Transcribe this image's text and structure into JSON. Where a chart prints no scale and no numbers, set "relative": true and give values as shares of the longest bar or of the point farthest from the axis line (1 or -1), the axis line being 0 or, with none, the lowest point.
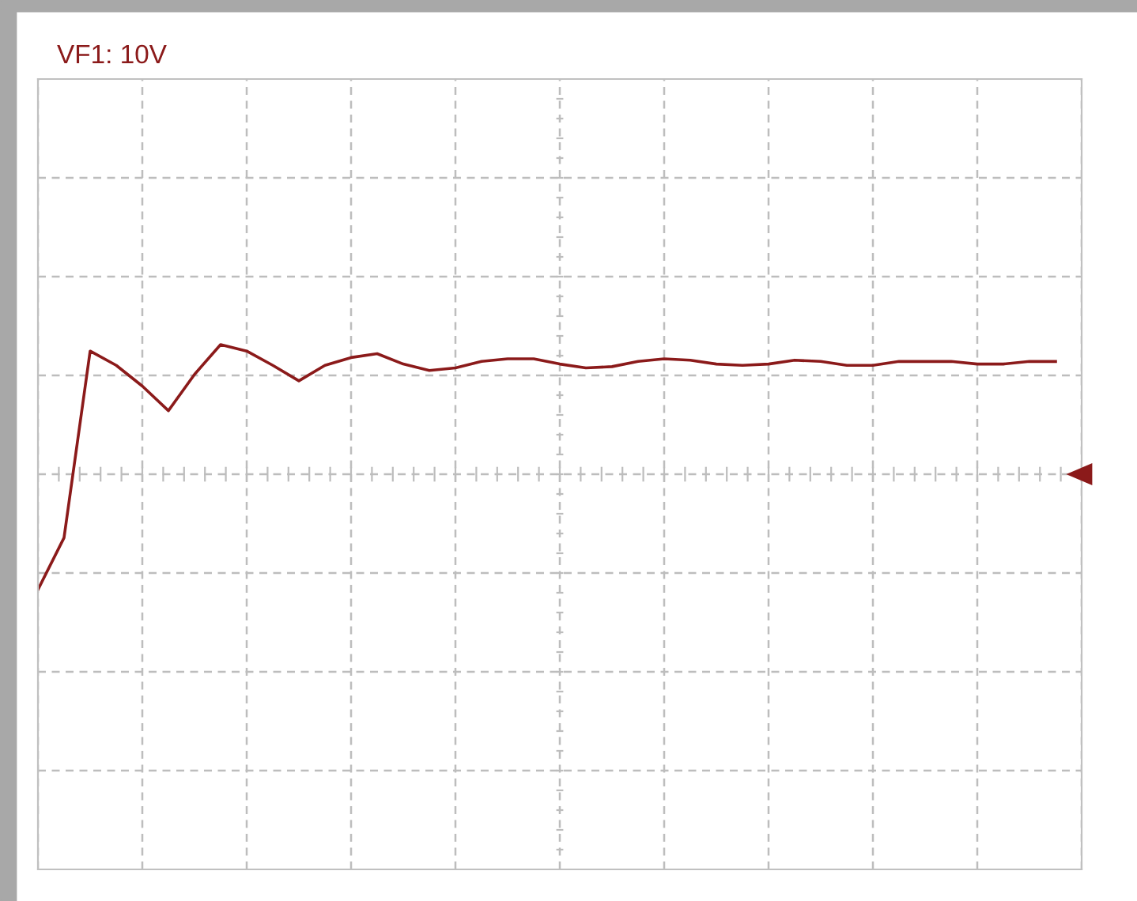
{
  "chart_data": {
    "type": "line",
    "title": "VF1: 10V",
    "relative": true,
    "grid": true,
    "tick_labels": false,
    "marker": "none",
    "line_style": "solid",
    "categories": [
      null,
      null,
      null,
      null,
      null,
      null,
      null,
      null,
      null,
      null,
      null,
      null,
      null,
      null,
      null,
      null,
      null,
      null,
      null,
      null,
      null,
      null,
      null,
      null,
      null,
      null,
      null,
      null,
      null,
      null,
      null,
      null,
      null,
      null,
      null,
      null,
      null,
      null,
      null,
      null,
      null
    ],
    "series": [
      {
        "color": "#8b1a1a",
        "values": [
          -0.89,
          -0.49,
          0.95,
          0.84,
          0.68,
          0.49,
          0.77,
          1.0,
          0.95,
          0.84,
          0.72,
          0.84,
          0.9,
          0.93,
          0.85,
          0.8,
          0.82,
          0.87,
          0.89,
          0.89,
          0.85,
          0.82,
          0.83,
          0.87,
          0.89,
          0.88,
          0.85,
          0.84,
          0.85,
          0.88,
          0.87,
          0.84,
          0.84,
          0.87,
          0.87,
          0.87,
          0.85,
          0.85,
          0.87,
          0.87,
          null
        ]
      }
    ]
  }
}
